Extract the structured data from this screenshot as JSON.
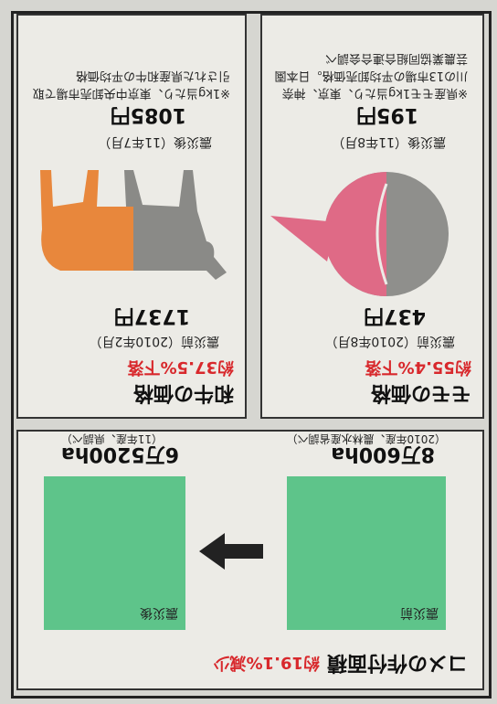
{
  "rice": {
    "title": "コメの作付面積",
    "change": "約19.1%減少",
    "before": {
      "label": "震災前",
      "value": "8万600ha",
      "source": "（2010年産、農林水産省調べ）"
    },
    "after": {
      "label": "震災後",
      "value": "6万5200ha",
      "source": "（11年産、県調べ）"
    }
  },
  "peach": {
    "title": "モモの価格",
    "change": "約55.4%下落",
    "before": {
      "label": "震災前（2010年8月）",
      "value": "437円"
    },
    "after": {
      "label": "震災後（11年8月）",
      "value": "195円"
    },
    "note": "※県産モモ1kg当たり、東京、神奈川の13市場の平均卸売価格。日本園芸農業協同組合連合会調べ"
  },
  "beef": {
    "title": "和牛の価格",
    "change": "約37.5%下落",
    "before": {
      "label": "震災前（2010年2月）",
      "value": "1737円"
    },
    "after": {
      "label": "震災後（11年7月）",
      "value": "1085円"
    },
    "note": "※1kg当たり、東京中央卸売市場で取引された県産和牛の平均価格"
  }
}
